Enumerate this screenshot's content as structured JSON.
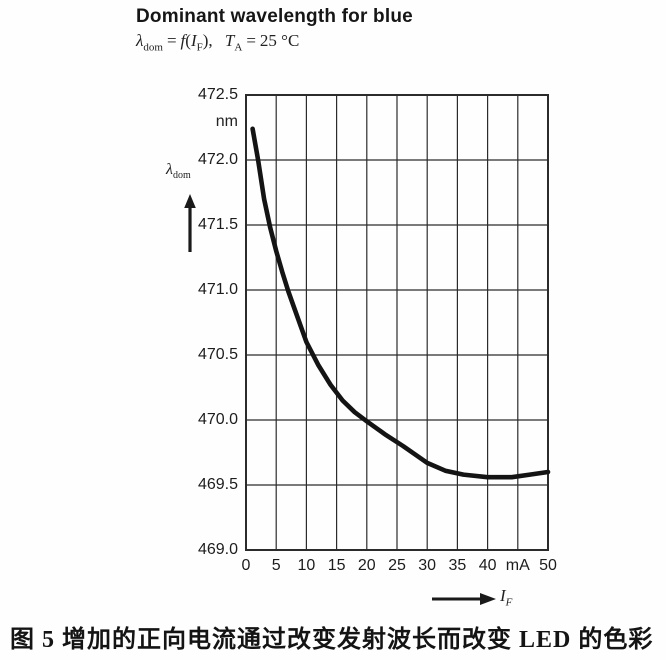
{
  "chart": {
    "title": "Dominant wavelength for blue",
    "subtitle": {
      "lambda": "λ",
      "lambda_sub": "dom",
      "eq1": "=",
      "func": "f",
      "open_paren": "(",
      "current": "I",
      "current_sub": "F",
      "close_paren": "),",
      "temp": "T",
      "temp_sub": "A",
      "eq2": "=",
      "temp_value": "25 °C"
    },
    "y_unit": "nm",
    "y_axis_symbol": {
      "sym": "λ",
      "sub": "dom"
    },
    "x_axis_symbol": {
      "sym": "I",
      "sub": "F"
    },
    "y_ticks": [
      "472.5",
      "472.0",
      "471.5",
      "471.0",
      "470.5",
      "470.0",
      "469.5",
      "469.0"
    ],
    "x_ticks": [
      "0",
      "5",
      "10",
      "15",
      "20",
      "25",
      "30",
      "35",
      "40",
      "mA",
      "50"
    ],
    "icons": {
      "y_axis_arrow": "up-arrow",
      "x_axis_arrow": "right-arrow"
    },
    "colors": {
      "line": "#141414",
      "grid": "#2b2b2b",
      "text": "#1b1b1b"
    }
  },
  "caption": {
    "text": "图 5  增加的正向电流通过改变发射波长而改变 LED 的色彩"
  },
  "chart_data": {
    "type": "line",
    "title": "Dominant wavelength for blue",
    "subtitle": "λdom = f(IF), TA = 25 °C",
    "xlabel": "IF (mA)",
    "ylabel": "λdom (nm)",
    "xlim": [
      0,
      50
    ],
    "ylim": [
      469.0,
      472.5
    ],
    "x_tick_values": [
      0,
      5,
      10,
      15,
      20,
      25,
      30,
      35,
      40,
      45,
      50
    ],
    "y_tick_values": [
      469.0,
      469.5,
      470.0,
      470.5,
      471.0,
      471.5,
      472.0,
      472.5
    ],
    "grid": true,
    "legend": false,
    "series": [
      {
        "name": "dominant_wavelength_vs_forward_current",
        "x": [
          1.1,
          2,
          3,
          4,
          5,
          6,
          7,
          8,
          10,
          12,
          14,
          16,
          18,
          20,
          23,
          26,
          30,
          33,
          36,
          40,
          44,
          47,
          50
        ],
        "y": [
          472.24,
          472.0,
          471.7,
          471.48,
          471.3,
          471.14,
          470.99,
          470.86,
          470.6,
          470.42,
          470.27,
          470.15,
          470.06,
          469.99,
          469.89,
          469.8,
          469.67,
          469.61,
          469.58,
          469.56,
          469.56,
          469.58,
          469.6
        ]
      }
    ]
  }
}
